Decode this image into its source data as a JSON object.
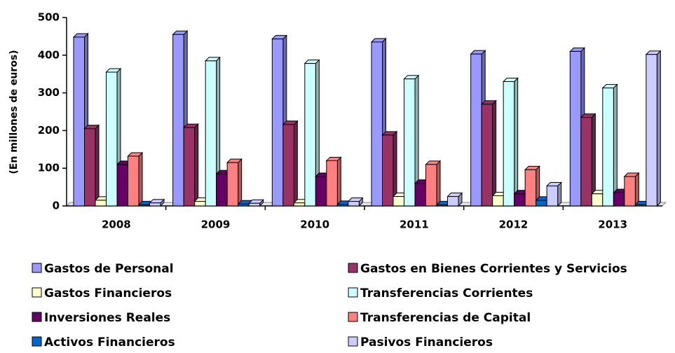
{
  "chart_data": {
    "type": "bar",
    "y_label": "(En millones de euros)",
    "categories": [
      "2008",
      "2009",
      "2010",
      "2011",
      "2012",
      "2013"
    ],
    "series": [
      {
        "name": "Gastos de Personal",
        "color": "#9999ff",
        "values": [
          448,
          455,
          443,
          435,
          403,
          410
        ]
      },
      {
        "name": "Gastos en Bienes Corrientes y Servicios",
        "color": "#993366",
        "values": [
          205,
          208,
          216,
          188,
          270,
          235
        ]
      },
      {
        "name": "Gastos Financieros",
        "color": "#ffffcc",
        "values": [
          15,
          12,
          8,
          25,
          27,
          32
        ]
      },
      {
        "name": "Transferencias Corrientes",
        "color": "#ccffff",
        "values": [
          355,
          385,
          378,
          337,
          330,
          313
        ]
      },
      {
        "name": "Inversiones Reales",
        "color": "#660066",
        "values": [
          110,
          85,
          78,
          60,
          32,
          35
        ]
      },
      {
        "name": "Transferencias de Capital",
        "color": "#ff8080",
        "values": [
          132,
          115,
          120,
          110,
          96,
          78
        ]
      },
      {
        "name": "Activos Financieros",
        "color": "#0066cc",
        "values": [
          3,
          5,
          4,
          3,
          15,
          3
        ]
      },
      {
        "name": "Pasivos Financieros",
        "color": "#ccccff",
        "values": [
          8,
          7,
          12,
          25,
          53,
          402
        ]
      }
    ],
    "ylim": [
      0,
      500
    ],
    "yticks": [
      0,
      100,
      200,
      300,
      400,
      500
    ]
  }
}
